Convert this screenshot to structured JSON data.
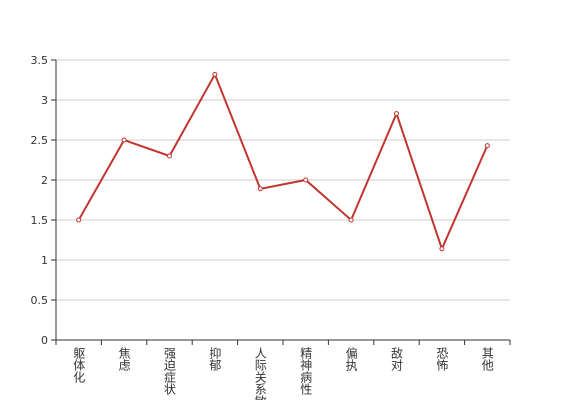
{
  "chart_data": {
    "type": "line",
    "categories": [
      "躯体化",
      "焦虑",
      "强迫症状",
      "抑郁",
      "人际关系敏感",
      "精神病性",
      "偏执",
      "敌对",
      "恐怖",
      "其他"
    ],
    "series": [
      {
        "name": null,
        "color": "#c23531",
        "values": [
          1.5,
          2.5,
          2.3,
          3.32,
          1.89,
          2.0,
          1.5,
          2.83,
          1.14,
          2.43
        ]
      }
    ],
    "ylim": [
      0,
      3.5
    ],
    "yticks": [
      0,
      0.5,
      1,
      1.5,
      2,
      2.5,
      3,
      3.5
    ],
    "grid": true
  }
}
